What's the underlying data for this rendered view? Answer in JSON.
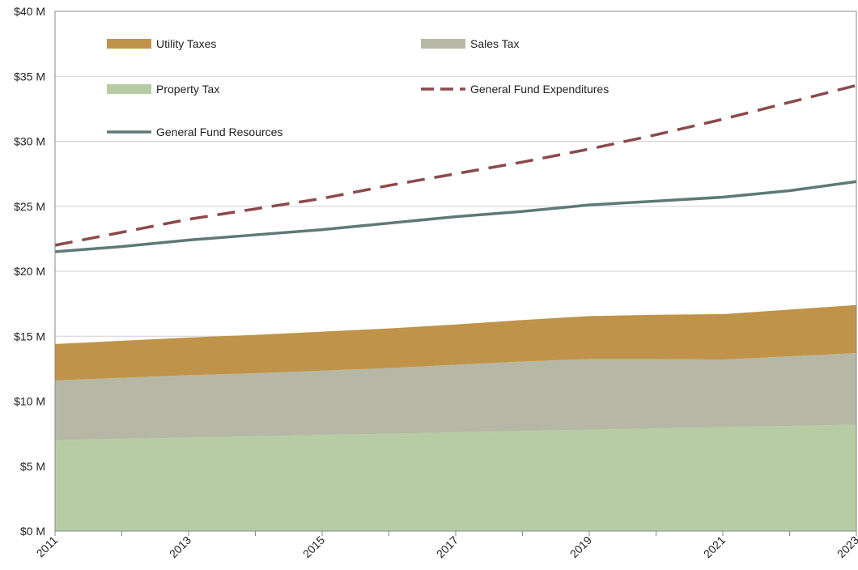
{
  "chart_data": {
    "type": "area",
    "x": [
      2011,
      2012,
      2013,
      2014,
      2015,
      2016,
      2017,
      2018,
      2019,
      2020,
      2021,
      2022,
      2023
    ],
    "x_tick_labels": [
      "2011",
      "2013",
      "2015",
      "2017",
      "2019",
      "2021",
      "2023"
    ],
    "y_tick_labels": [
      "$0 M",
      "$5 M",
      "$10 M",
      "$15 M",
      "$20 M",
      "$25 M",
      "$30 M",
      "$35 M",
      "$40 M"
    ],
    "ylim": [
      0,
      40
    ],
    "y_unit": "$M",
    "grid": true,
    "legend_position": "top (inside plot)",
    "stacked_areas": [
      {
        "name": "Property Tax",
        "color": "#b7cca4",
        "values": [
          7.0,
          7.1,
          7.2,
          7.3,
          7.4,
          7.5,
          7.6,
          7.7,
          7.8,
          7.9,
          8.0,
          8.1,
          8.2
        ]
      },
      {
        "name": "Sales Tax",
        "color": "#b6b8a5",
        "values": [
          4.6,
          4.7,
          4.8,
          4.85,
          4.95,
          5.05,
          5.2,
          5.35,
          5.45,
          5.35,
          5.2,
          5.35,
          5.5
        ]
      },
      {
        "name": "Utility Taxes",
        "color": "#c0934a",
        "values": [
          2.8,
          2.85,
          2.9,
          2.95,
          3.0,
          3.05,
          3.1,
          3.2,
          3.3,
          3.4,
          3.5,
          3.6,
          3.7
        ]
      }
    ],
    "lines": [
      {
        "name": "General Fund Expenditures",
        "color": "#8b4a4b",
        "style": "dashed",
        "values": [
          22.0,
          23.0,
          24.0,
          24.8,
          25.6,
          26.6,
          27.5,
          28.4,
          29.4,
          30.5,
          31.7,
          33.0,
          34.3
        ]
      },
      {
        "name": "General Fund Resources",
        "color": "#5e7a77",
        "style": "solid",
        "values": [
          21.5,
          21.9,
          22.4,
          22.8,
          23.2,
          23.7,
          24.2,
          24.6,
          25.1,
          25.4,
          25.7,
          26.2,
          26.9
        ]
      }
    ],
    "legend": [
      {
        "label": "Utility Taxes",
        "color": "#c0934a",
        "kind": "patch"
      },
      {
        "label": "Sales Tax",
        "color": "#b6b8a5",
        "kind": "patch"
      },
      {
        "label": "Property Tax",
        "color": "#b7cca4",
        "kind": "patch"
      },
      {
        "label": "General Fund Expenditures",
        "color": "#8b4a4b",
        "kind": "dashed-line"
      },
      {
        "label": "General Fund Resources",
        "color": "#5e7a77",
        "kind": "solid-line"
      }
    ]
  }
}
